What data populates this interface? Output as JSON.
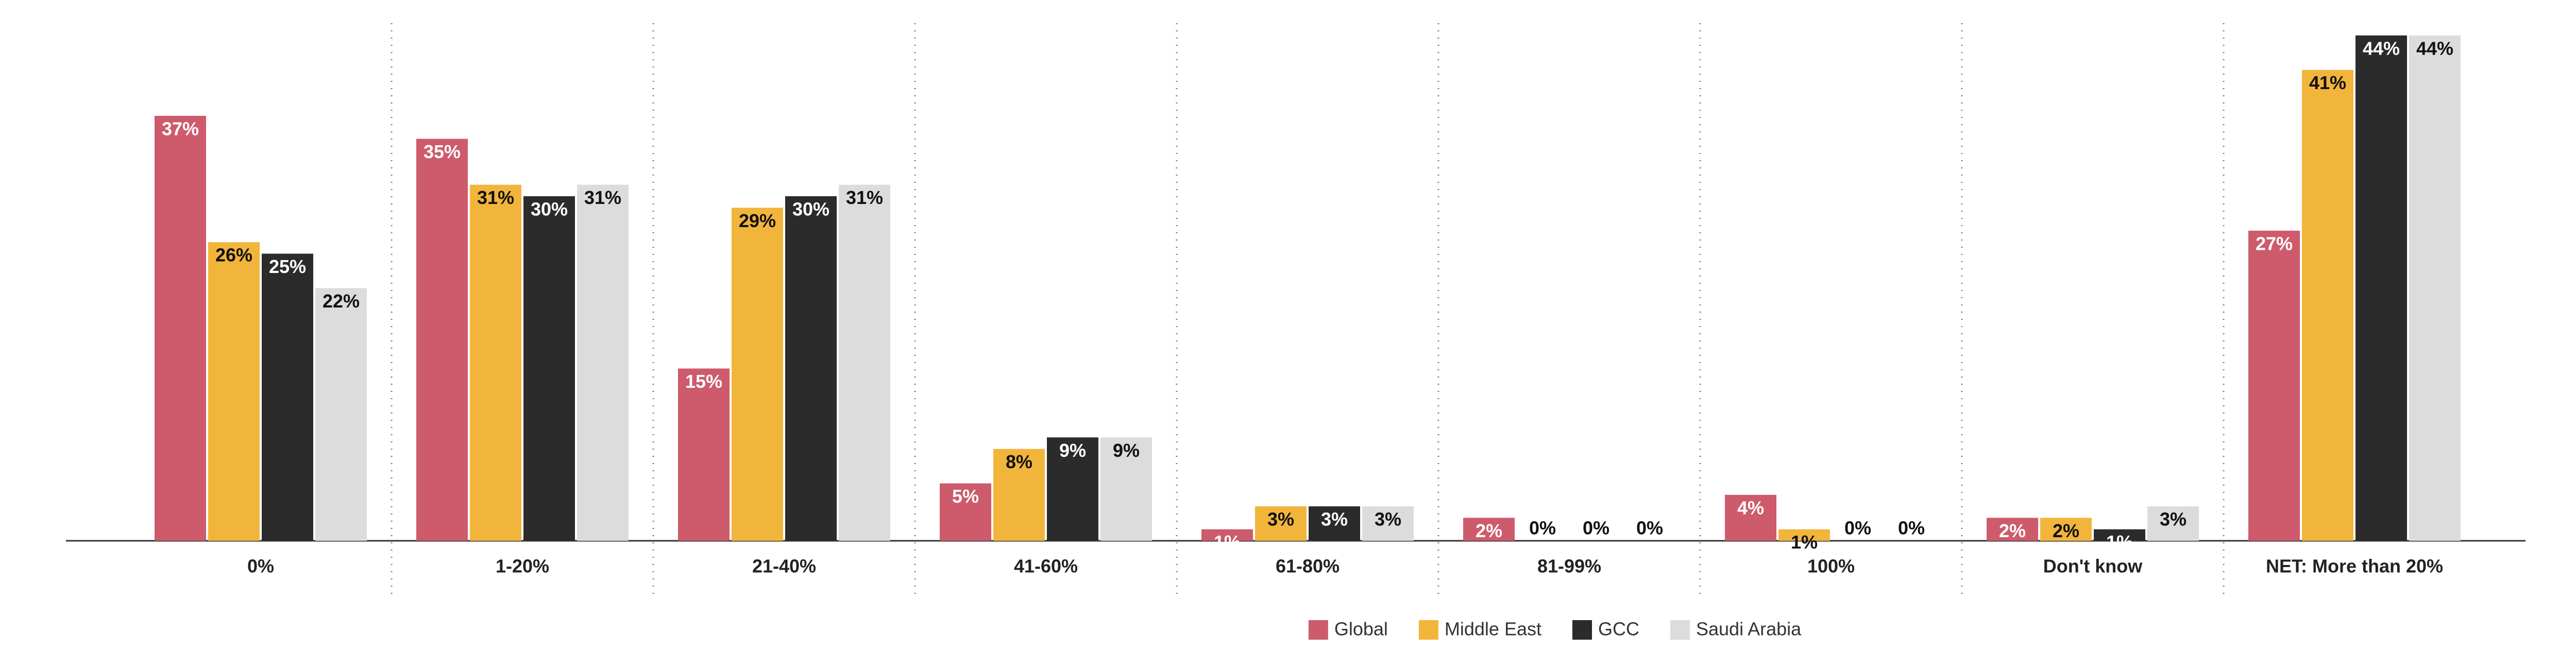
{
  "chart_data": {
    "type": "bar",
    "categories": [
      "0%",
      "1-20%",
      "21-40%",
      "41-60%",
      "61-80%",
      "81-99%",
      "100%",
      "Don't know",
      "NET: More than 20%"
    ],
    "series": [
      {
        "name": "Global",
        "color": "#cd5b6c",
        "values": [
          37,
          35,
          15,
          5,
          1,
          2,
          4,
          2,
          27
        ],
        "value_labels": [
          "37%",
          "35%",
          "15%",
          "5%",
          "1%",
          "2%",
          "4%",
          "2%",
          "27%"
        ]
      },
      {
        "name": "Middle East",
        "color": "#f2b53c",
        "values": [
          26,
          31,
          29,
          8,
          3,
          0,
          1,
          2,
          41
        ],
        "value_labels": [
          "26%",
          "31%",
          "29%",
          "8%",
          "3%",
          "0%",
          "1%",
          "2%",
          "41%"
        ]
      },
      {
        "name": "GCC",
        "color": "#2b2b2b",
        "values": [
          25,
          30,
          30,
          9,
          3,
          0,
          0,
          1,
          44
        ],
        "value_labels": [
          "25%",
          "30%",
          "30%",
          "9%",
          "3%",
          "0%",
          "0%",
          "1%",
          "44%"
        ]
      },
      {
        "name": "Saudi Arabia",
        "color": "#dcdcdc",
        "values": [
          22,
          31,
          31,
          9,
          3,
          0,
          0,
          3,
          44
        ],
        "value_labels": [
          "22%",
          "31%",
          "31%",
          "9%",
          "3%",
          "0%",
          "0%",
          "3%",
          "44%"
        ]
      }
    ],
    "legend": "bottom"
  }
}
